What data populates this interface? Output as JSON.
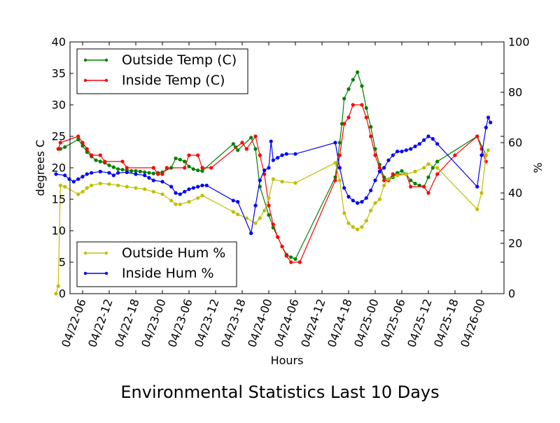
{
  "chart_data": {
    "type": "line",
    "title": "Environmental Statistics Last 10 Days",
    "xlabel": "Hours",
    "ylabel_left": "degrees C",
    "ylabel_right": "%",
    "x_ticks": [
      "04/22-06",
      "04/22-12",
      "04/22-18",
      "04/23-00",
      "04/23-06",
      "04/23-12",
      "04/23-18",
      "04/24-00",
      "04/24-06",
      "04/24-12",
      "04/24-18",
      "04/25-00",
      "04/25-06",
      "04/25-12",
      "04/25-18",
      "04/26-00"
    ],
    "y_left_ticks": [
      "0",
      "5",
      "10",
      "15",
      "20",
      "25",
      "30",
      "35",
      "40"
    ],
    "y_right_ticks": [
      "0",
      "20",
      "40",
      "60",
      "80",
      "100"
    ],
    "ylim_left": [
      0,
      40
    ],
    "ylim_right": [
      0,
      100
    ],
    "legends": {
      "top_left": [
        "Outside Temp (C)",
        "Inside Temp (C)"
      ],
      "bottom_left": [
        "Outside Hum %",
        "Inside Hum %"
      ]
    },
    "series": [
      {
        "name": "Outside Temp (C)",
        "axis": "left",
        "color": "#008000",
        "points": [
          [
            "04/22-01:00",
            23
          ],
          [
            "04/22-02:00",
            23.3
          ],
          [
            "04/22-05:00",
            24.5
          ],
          [
            "04/22-06:00",
            23.5
          ],
          [
            "04/22-07:00",
            22.5
          ],
          [
            "04/22-08:00",
            21.8
          ],
          [
            "04/22-09:00",
            21.2
          ],
          [
            "04/22-10:00",
            21.0
          ],
          [
            "04/22-11:00",
            20.8
          ],
          [
            "04/22-12:00",
            20.4
          ],
          [
            "04/22-13:00",
            20.1
          ],
          [
            "04/22-14:00",
            19.8
          ],
          [
            "04/22-15:00",
            19.7
          ],
          [
            "04/22-16:00",
            19.6
          ],
          [
            "04/22-17:00",
            19.5
          ],
          [
            "04/22-18:00",
            19.5
          ],
          [
            "04/22-19:00",
            19.4
          ],
          [
            "04/22-20:00",
            19.3
          ],
          [
            "04/22-21:00",
            19.2
          ],
          [
            "04/22-22:00",
            19.1
          ],
          [
            "04/22-23:00",
            19.2
          ],
          [
            "04/23-00:00",
            19.3
          ],
          [
            "04/23-02:00",
            20.0
          ],
          [
            "04/23-03:00",
            21.5
          ],
          [
            "04/23-04:00",
            21.3
          ],
          [
            "04/23-05:00",
            21.0
          ],
          [
            "04/23-06:00",
            20.2
          ],
          [
            "04/23-07:00",
            19.8
          ],
          [
            "04/23-08:00",
            19.6
          ],
          [
            "04/23-09:00",
            19.5
          ],
          [
            "04/23-16:00",
            23.8
          ],
          [
            "04/23-16:30",
            23.3
          ],
          [
            "04/23-17:00",
            22.8
          ],
          [
            "04/23-20:00",
            24.8
          ],
          [
            "04/23-21:00",
            23.0
          ],
          [
            "04/23-22:00",
            17.0
          ],
          [
            "04/24-00:00",
            12.5
          ],
          [
            "04/24-01:00",
            10.5
          ],
          [
            "04/24-02:00",
            9.0
          ],
          [
            "04/24-03:00",
            7.5
          ],
          [
            "04/24-04:00",
            6.2
          ],
          [
            "04/24-05:00",
            5.8
          ],
          [
            "04/24-06:00",
            5.5
          ],
          [
            "04/24-15:00",
            18.5
          ],
          [
            "04/24-16:00",
            24.0
          ],
          [
            "04/24-16:30",
            27.0
          ],
          [
            "04/24-17:00",
            31.0
          ],
          [
            "04/24-18:00",
            32.5
          ],
          [
            "04/24-19:00",
            34.0
          ],
          [
            "04/24-20:00",
            35.2
          ],
          [
            "04/24-21:00",
            33.0
          ],
          [
            "04/24-22:00",
            29.5
          ],
          [
            "04/24-23:00",
            26.5
          ],
          [
            "04/25-00:00",
            23.0
          ],
          [
            "04/25-01:00",
            20.5
          ],
          [
            "04/25-02:00",
            18.5
          ],
          [
            "04/25-03:00",
            18.0
          ],
          [
            "04/25-04:00",
            18.5
          ],
          [
            "04/25-05:00",
            19.2
          ],
          [
            "04/25-06:00",
            19.5
          ],
          [
            "04/25-07:00",
            19.0
          ],
          [
            "04/25-08:00",
            18.0
          ],
          [
            "04/25-09:00",
            17.5
          ],
          [
            "04/25-10:00",
            17.2
          ],
          [
            "04/25-11:00",
            17.0
          ],
          [
            "04/25-12:00",
            18.5
          ],
          [
            "04/25-13:00",
            20.0
          ],
          [
            "04/25-14:00",
            21.0
          ],
          [
            "04/25-23:00",
            25.0
          ],
          [
            "04/26-01:00",
            22.0
          ]
        ]
      },
      {
        "name": "Inside Temp (C)",
        "axis": "left",
        "color": "#ff0000",
        "points": [
          [
            "04/22-00:30",
            23
          ],
          [
            "04/22-01:00",
            24
          ],
          [
            "04/22-05:00",
            25
          ],
          [
            "04/22-06:00",
            24
          ],
          [
            "04/22-07:00",
            23
          ],
          [
            "04/22-08:00",
            22
          ],
          [
            "04/22-10:00",
            22
          ],
          [
            "04/22-11:00",
            21
          ],
          [
            "04/22-15:00",
            21
          ],
          [
            "04/22-16:00",
            20
          ],
          [
            "04/22-22:00",
            20
          ],
          [
            "04/22-23:00",
            19
          ],
          [
            "04/23-00:00",
            19
          ],
          [
            "04/23-01:00",
            20
          ],
          [
            "04/23-05:00",
            20
          ],
          [
            "04/23-06:00",
            22
          ],
          [
            "04/23-08:00",
            22
          ],
          [
            "04/23-09:00",
            20
          ],
          [
            "04/23-11:00",
            20
          ],
          [
            "04/23-18:00",
            24
          ],
          [
            "04/23-19:00",
            23
          ],
          [
            "04/23-21:00",
            25
          ],
          [
            "04/23-22:00",
            22
          ],
          [
            "04/23-23:00",
            19
          ],
          [
            "04/24-00:00",
            14
          ],
          [
            "04/24-01:00",
            11
          ],
          [
            "04/24-02:00",
            9
          ],
          [
            "04/24-03:00",
            7.5
          ],
          [
            "04/24-04:00",
            6
          ],
          [
            "04/24-05:00",
            5
          ],
          [
            "04/24-07:00",
            5
          ],
          [
            "04/24-15:00",
            18
          ],
          [
            "04/24-16:00",
            22
          ],
          [
            "04/24-17:00",
            27
          ],
          [
            "04/24-18:00",
            28
          ],
          [
            "04/24-19:00",
            30
          ],
          [
            "04/24-21:00",
            30
          ],
          [
            "04/24-22:00",
            28
          ],
          [
            "04/24-23:00",
            25
          ],
          [
            "04/25-00:00",
            22
          ],
          [
            "04/25-01:00",
            20
          ],
          [
            "04/25-02:00",
            18
          ],
          [
            "04/25-03:00",
            18
          ],
          [
            "04/25-04:00",
            19
          ],
          [
            "04/25-07:00",
            19
          ],
          [
            "04/25-08:00",
            17
          ],
          [
            "04/25-11:00",
            17
          ],
          [
            "04/25-12:00",
            16
          ],
          [
            "04/25-14:00",
            19
          ],
          [
            "04/25-18:00",
            22
          ],
          [
            "04/25-23:00",
            25
          ],
          [
            "04/26-00:00",
            23
          ],
          [
            "04/26-01:00",
            21
          ]
        ]
      },
      {
        "name": "Outside Hum %",
        "axis": "right",
        "color": "#bfbf00",
        "points": [
          [
            "04/22-00:00",
            0
          ],
          [
            "04/22-00:30",
            3
          ],
          [
            "04/22-01:00",
            43
          ],
          [
            "04/22-02:00",
            42.5
          ],
          [
            "04/22-05:00",
            39.5
          ],
          [
            "04/22-06:00",
            40.5
          ],
          [
            "04/22-07:00",
            42.0
          ],
          [
            "04/22-08:00",
            43.0
          ],
          [
            "04/22-10:00",
            43.8
          ],
          [
            "04/22-12:00",
            43.5
          ],
          [
            "04/22-14:00",
            43.0
          ],
          [
            "04/22-16:00",
            42.5
          ],
          [
            "04/22-18:00",
            42.0
          ],
          [
            "04/22-20:00",
            41.5
          ],
          [
            "04/22-22:00",
            40.5
          ],
          [
            "04/23-00:00",
            39.5
          ],
          [
            "04/23-02:00",
            37.0
          ],
          [
            "04/23-03:00",
            35.5
          ],
          [
            "04/23-04:00",
            35.5
          ],
          [
            "04/23-06:00",
            36.5
          ],
          [
            "04/23-08:00",
            38.0
          ],
          [
            "04/23-09:00",
            39.0
          ],
          [
            "04/23-16:00",
            32.5
          ],
          [
            "04/23-17:00",
            31.5
          ],
          [
            "04/23-19:00",
            30.0
          ],
          [
            "04/23-21:00",
            28.0
          ],
          [
            "04/23-22:00",
            30.0
          ],
          [
            "04/23-23:00",
            33.0
          ],
          [
            "04/24-00:00",
            38.0
          ],
          [
            "04/24-01:00",
            45.5
          ],
          [
            "04/24-03:00",
            44.5
          ],
          [
            "04/24-06:00",
            44.0
          ],
          [
            "04/24-15:00",
            52.0
          ],
          [
            "04/24-16:00",
            45.0
          ],
          [
            "04/24-17:00",
            32.0
          ],
          [
            "04/24-18:00",
            28.0
          ],
          [
            "04/24-19:00",
            26.5
          ],
          [
            "04/24-20:00",
            25.5
          ],
          [
            "04/24-21:00",
            26.5
          ],
          [
            "04/24-22:00",
            29.0
          ],
          [
            "04/24-23:00",
            33.0
          ],
          [
            "04/25-00:00",
            36.0
          ],
          [
            "04/25-01:00",
            37.5
          ],
          [
            "04/25-02:00",
            43.0
          ],
          [
            "04/25-03:00",
            45.5
          ],
          [
            "04/25-05:00",
            47.0
          ],
          [
            "04/25-07:00",
            47.5
          ],
          [
            "04/25-09:00",
            48.5
          ],
          [
            "04/25-11:00",
            50.0
          ],
          [
            "04/25-12:00",
            51.5
          ],
          [
            "04/25-14:00",
            50.0
          ],
          [
            "04/25-23:00",
            33.5
          ],
          [
            "04/26-00:00",
            40.0
          ],
          [
            "04/26-01:00",
            55.0
          ],
          [
            "04/26-01:30",
            57.0
          ]
        ]
      },
      {
        "name": "Inside Hum %",
        "axis": "right",
        "color": "#0000ff",
        "points": [
          [
            "04/22-00:00",
            47.5
          ],
          [
            "04/22-02:00",
            47.0
          ],
          [
            "04/22-03:00",
            45.5
          ],
          [
            "04/22-04:00",
            44.5
          ],
          [
            "04/22-05:00",
            45.5
          ],
          [
            "04/22-06:00",
            46.5
          ],
          [
            "04/22-07:00",
            47.5
          ],
          [
            "04/22-08:00",
            48.0
          ],
          [
            "04/22-10:00",
            48.5
          ],
          [
            "04/22-12:00",
            48.0
          ],
          [
            "04/22-13:00",
            47.0
          ],
          [
            "04/22-14:00",
            48.0
          ],
          [
            "04/22-16:00",
            48.2
          ],
          [
            "04/22-18:00",
            47.5
          ],
          [
            "04/22-20:00",
            47.0
          ],
          [
            "04/22-21:00",
            46.0
          ],
          [
            "04/22-22:00",
            45.0
          ],
          [
            "04/23-00:00",
            44.5
          ],
          [
            "04/23-02:00",
            42.5
          ],
          [
            "04/23-03:00",
            40.0
          ],
          [
            "04/23-04:00",
            39.5
          ],
          [
            "04/23-05:00",
            40.5
          ],
          [
            "04/23-06:00",
            41.5
          ],
          [
            "04/23-07:00",
            42.0
          ],
          [
            "04/23-08:00",
            42.5
          ],
          [
            "04/23-09:00",
            43.0
          ],
          [
            "04/23-10:00",
            43.0
          ],
          [
            "04/23-16:00",
            37.0
          ],
          [
            "04/23-17:00",
            36.5
          ],
          [
            "04/23-20:00",
            24.0
          ],
          [
            "04/23-21:00",
            35.0
          ],
          [
            "04/23-22:00",
            45.0
          ],
          [
            "04/23-23:00",
            49.0
          ],
          [
            "04/24-00:00",
            50.0
          ],
          [
            "04/24-00:30",
            60.5
          ],
          [
            "04/24-01:00",
            53.0
          ],
          [
            "04/24-02:00",
            54.0
          ],
          [
            "04/24-03:00",
            55.0
          ],
          [
            "04/24-04:00",
            55.5
          ],
          [
            "04/24-06:00",
            55.5
          ],
          [
            "04/24-15:00",
            60.0
          ],
          [
            "04/24-16:00",
            50.0
          ],
          [
            "04/24-17:00",
            42.0
          ],
          [
            "04/24-18:00",
            38.5
          ],
          [
            "04/24-19:00",
            37.0
          ],
          [
            "04/24-20:00",
            36.0
          ],
          [
            "04/24-21:00",
            36.5
          ],
          [
            "04/24-22:00",
            38.0
          ],
          [
            "04/24-23:00",
            41.0
          ],
          [
            "04/25-00:00",
            45.0
          ],
          [
            "04/25-01:00",
            48.5
          ],
          [
            "04/25-02:00",
            50.0
          ],
          [
            "04/25-03:00",
            53.0
          ],
          [
            "04/25-04:00",
            55.0
          ],
          [
            "04/25-05:00",
            56.5
          ],
          [
            "04/25-06:00",
            56.5
          ],
          [
            "04/25-07:00",
            57.0
          ],
          [
            "04/25-08:00",
            57.5
          ],
          [
            "04/25-09:00",
            58.5
          ],
          [
            "04/25-10:00",
            59.5
          ],
          [
            "04/25-11:00",
            61.0
          ],
          [
            "04/25-12:00",
            62.5
          ],
          [
            "04/25-13:00",
            61.5
          ],
          [
            "04/25-14:00",
            59.5
          ],
          [
            "04/25-23:00",
            42.5
          ],
          [
            "04/26-00:00",
            55.0
          ],
          [
            "04/26-01:00",
            66.0
          ],
          [
            "04/26-01:30",
            70.0
          ],
          [
            "04/26-02:00",
            68.0
          ]
        ]
      }
    ]
  }
}
